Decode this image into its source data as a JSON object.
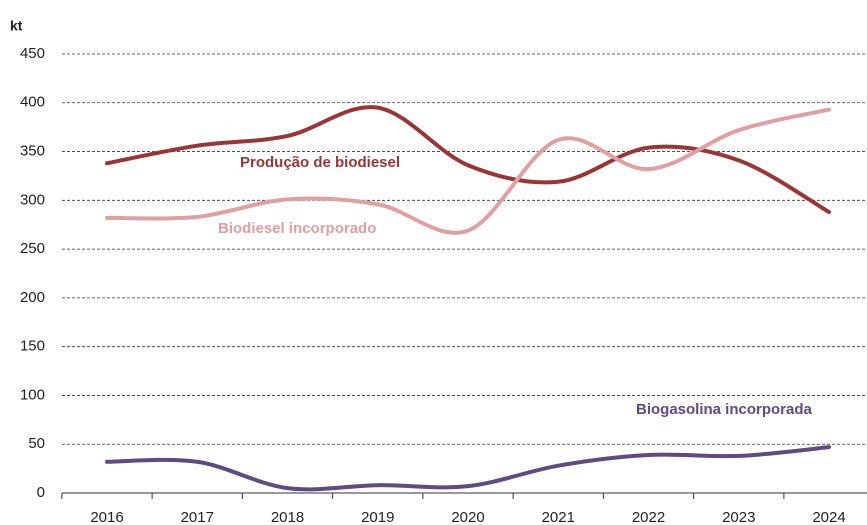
{
  "chart_data": {
    "type": "line",
    "y_label": "kt",
    "categories": [
      "2016",
      "2017",
      "2018",
      "2019",
      "2020",
      "2021",
      "2022",
      "2023",
      "2024"
    ],
    "series": [
      {
        "name": "Produção de biodiesel",
        "color": "#9b3434",
        "values": [
          338,
          356,
          366,
          395,
          336,
          319,
          354,
          341,
          288
        ]
      },
      {
        "name": "Biodiesel incorporado",
        "color": "#e0a0a0",
        "values": [
          282,
          283,
          301,
          296,
          269,
          362,
          332,
          372,
          393
        ]
      },
      {
        "name": "Biogasolina incorporada",
        "color": "#5f4a82",
        "values": [
          32,
          32,
          5,
          8,
          7,
          28,
          39,
          38,
          47
        ]
      }
    ],
    "ylim": [
      0,
      450
    ],
    "yticks": [
      0,
      50,
      100,
      150,
      200,
      250,
      300,
      350,
      400,
      450
    ],
    "grid": true,
    "smooth": true
  }
}
